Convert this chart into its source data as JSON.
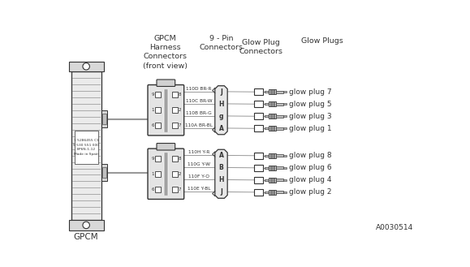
{
  "wire_labels_top": [
    "110D BR-R",
    "110C BR-W",
    "110B BR-G",
    "110A BR-BL"
  ],
  "wire_labels_bot": [
    "110H Y-R",
    "110G Y-W",
    "110F Y-O",
    "110E Y-BL"
  ],
  "pin_labels_top": [
    "J",
    "H",
    "g",
    "A"
  ],
  "pin_labels_bot": [
    "A",
    "B",
    "H",
    "J"
  ],
  "glow_plugs_top": [
    "glow plug 7",
    "glow plug 5",
    "glow plug 3",
    "glow plug 1"
  ],
  "glow_plugs_bot": [
    "glow plug 8",
    "glow plug 6",
    "glow plug 4",
    "glow plug 2"
  ],
  "header_gpcm_harness": "GPCM\nHarness\nConnectors\n(front view)",
  "header_9pin": "9 - Pin\nConnectors",
  "header_glow_conn": "Glow Plug\nConnectors",
  "header_glow_plugs": "Glow Plugs",
  "label_gpcm": "GPCM",
  "label_code": "A0030514",
  "gpcm_text": "1 5286455 C1\n9 530 551 000\nBP6N-1-12\nMade in Spain"
}
